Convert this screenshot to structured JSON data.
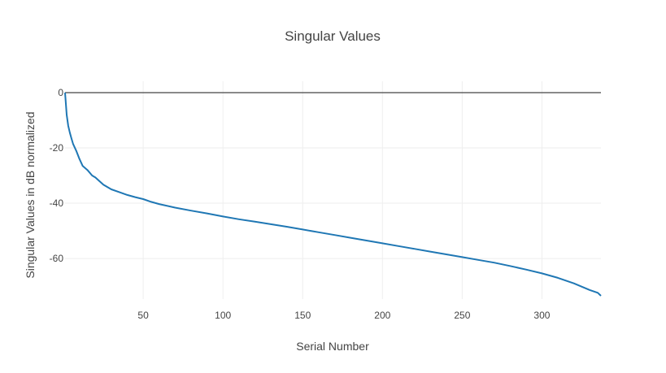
{
  "chart_data": {
    "type": "line",
    "title": "Singular Values",
    "xlabel": "Serial Number",
    "ylabel": "Singular Values in dB normalized",
    "xlim": [
      1,
      337
    ],
    "ylim": [
      -73.5,
      0
    ],
    "x_ticks": [
      50,
      100,
      150,
      200,
      250,
      300
    ],
    "y_ticks": [
      0,
      -20,
      -40,
      -60
    ],
    "grid": true,
    "colors": {
      "line": "#1f77b4",
      "zero_line": "#444444",
      "grid": "#eeeeee",
      "text": "#444444"
    },
    "series": [
      {
        "x": [
          1,
          2,
          3,
          4,
          5,
          6,
          8,
          10,
          12,
          15,
          18,
          20,
          25,
          30,
          35,
          40,
          45,
          50,
          55,
          60,
          70,
          80,
          90,
          100,
          110,
          120,
          130,
          140,
          150,
          160,
          170,
          180,
          190,
          200,
          210,
          220,
          230,
          240,
          250,
          260,
          270,
          280,
          290,
          300,
          310,
          320,
          325,
          330,
          335,
          337
        ],
        "y": [
          0,
          -8,
          -12,
          -14.5,
          -16.5,
          -18.5,
          -21,
          -24,
          -26.5,
          -28,
          -30,
          -30.7,
          -33.3,
          -35,
          -36,
          -37,
          -37.8,
          -38.5,
          -39.5,
          -40.3,
          -41.6,
          -42.7,
          -43.7,
          -44.8,
          -45.8,
          -46.7,
          -47.6,
          -48.5,
          -49.5,
          -50.5,
          -51.5,
          -52.5,
          -53.5,
          -54.5,
          -55.5,
          -56.5,
          -57.5,
          -58.5,
          -59.5,
          -60.5,
          -61.5,
          -62.7,
          -64,
          -65.4,
          -67,
          -69,
          -70.2,
          -71.4,
          -72.4,
          -73.5
        ]
      }
    ]
  }
}
